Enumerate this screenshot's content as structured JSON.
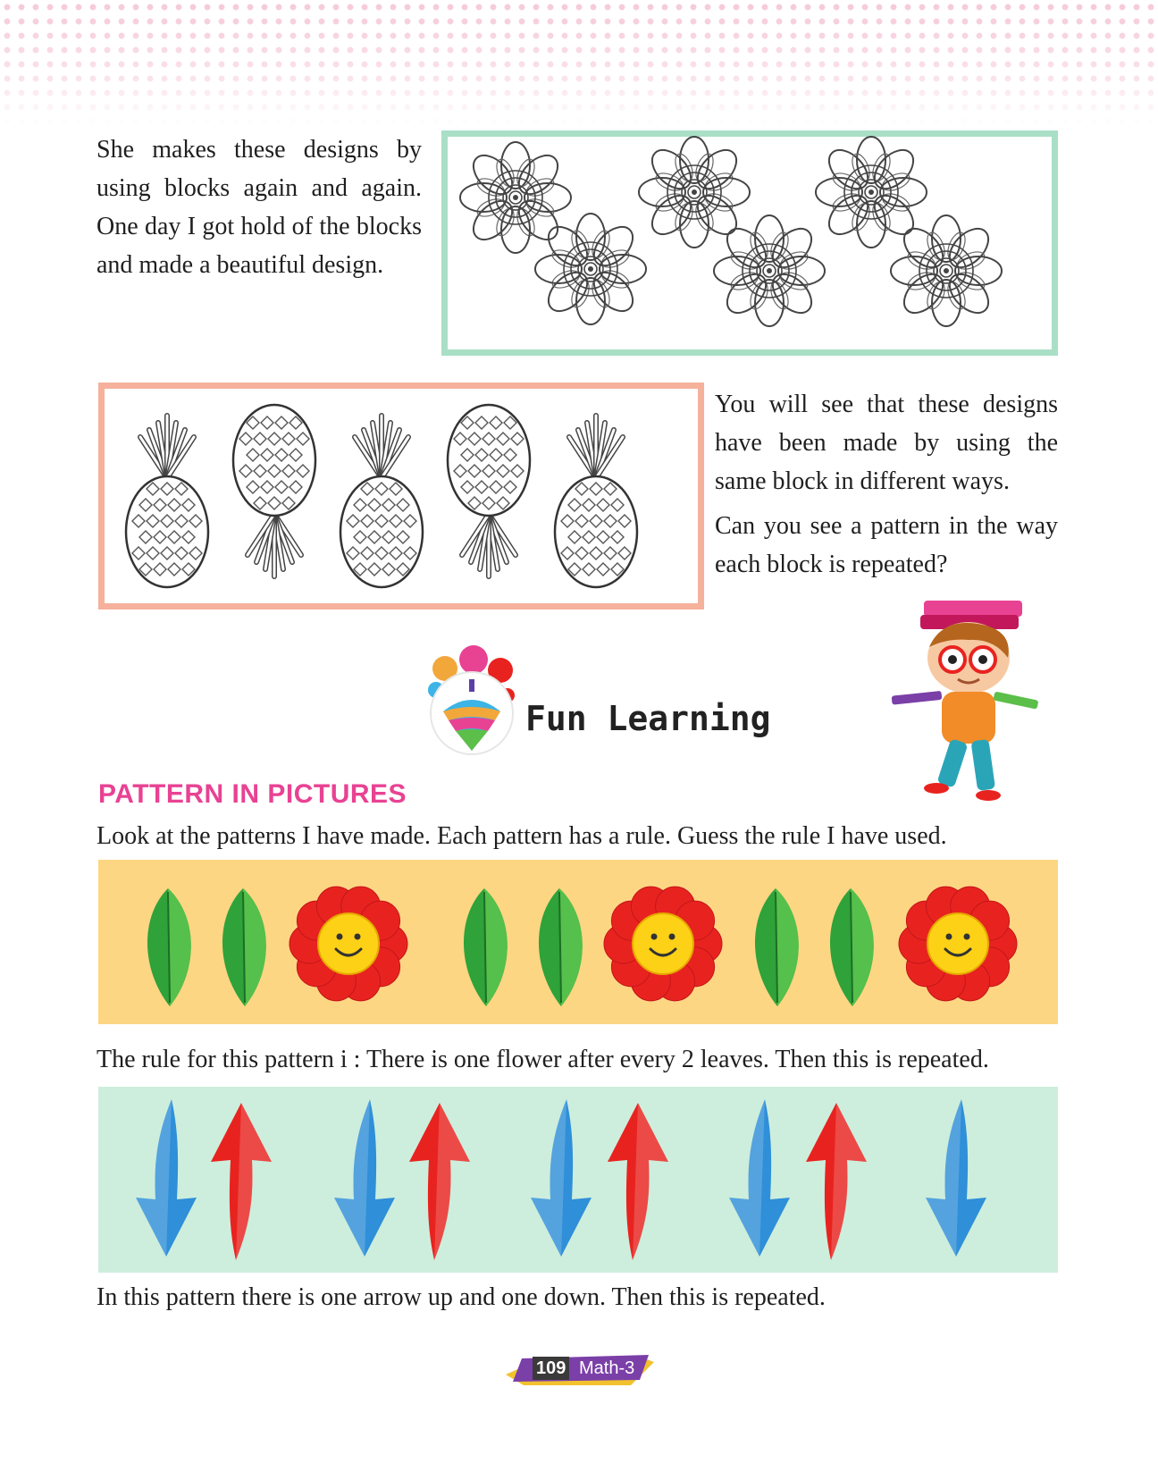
{
  "intro_paragraph": "She makes these designs by using blocks again and again. One day I got hold of the blocks and made a beautiful design.",
  "side_paragraph_1": "You will see that these designs have been made by using the same block in different ways.",
  "side_paragraph_2": "Can you see a pattern in the way each block is repeated?",
  "fun_learning_title": "Fun Learning",
  "section_heading": "PATTERN IN PICTURES",
  "instructions": "Look at the patterns I have made. Each pattern has a rule. Guess the rule I have used.",
  "rule_1": "The rule for this pattern i : There is one flower after every 2 leaves. Then this is repeated.",
  "rule_2": "In this pattern there is one arrow up and one down. Then this is repeated.",
  "pattern_1": [
    "leaf",
    "leaf",
    "flower",
    "leaf",
    "leaf",
    "flower",
    "leaf",
    "leaf",
    "flower"
  ],
  "pattern_2": [
    "down",
    "up",
    "down",
    "up",
    "down",
    "up",
    "down",
    "up",
    "down"
  ],
  "pineapples": [
    "upright",
    "inverted",
    "upright",
    "inverted",
    "upright"
  ],
  "footer": {
    "page_number": "109",
    "book": "Math-3"
  },
  "colors": {
    "heading": "#e84293",
    "mandala_border": "#a9dfc6",
    "pineapple_border": "#f5b19c",
    "leaf_strip": "#fdd683",
    "arrow_strip": "#cdeedd",
    "arrow_down": "#2f8fd8",
    "arrow_up": "#e8231f"
  }
}
